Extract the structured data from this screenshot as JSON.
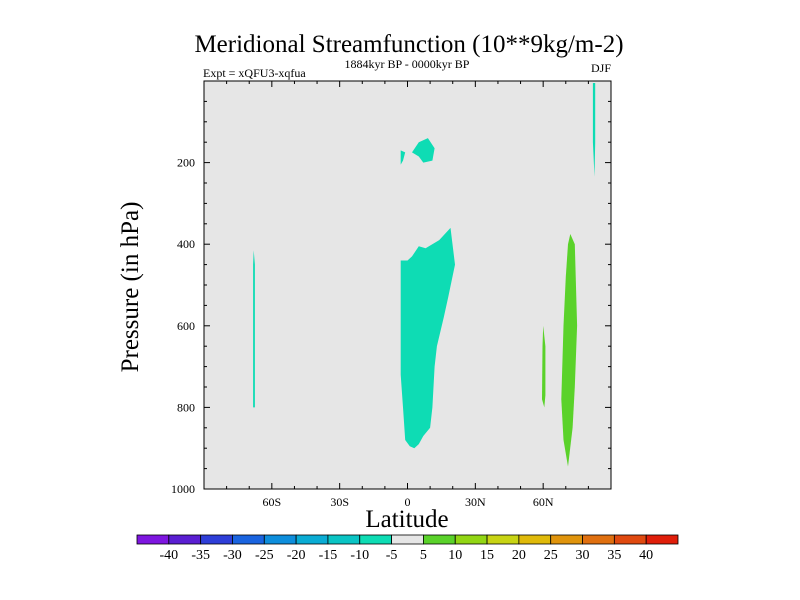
{
  "chart_data": {
    "type": "contour",
    "title": "Meridional Streamfunction (10**9kg/m-2)",
    "left_label": "Expt = xQFU3-xqfua",
    "center_label": "1884kyr BP - 0000kyr BP",
    "right_label": "DJF",
    "xlabel": "Latitude",
    "ylabel": "Pressure (in hPa)",
    "xlim": [
      -90,
      90
    ],
    "ylim": [
      1000,
      0
    ],
    "x_ticks": [
      {
        "value": -60,
        "label": "60S"
      },
      {
        "value": -30,
        "label": "30S"
      },
      {
        "value": 0,
        "label": "0"
      },
      {
        "value": 30,
        "label": "30N"
      },
      {
        "value": 60,
        "label": "60N"
      }
    ],
    "y_ticks": [
      {
        "value": 200,
        "label": "200"
      },
      {
        "value": 400,
        "label": "400"
      },
      {
        "value": 600,
        "label": "600"
      },
      {
        "value": 800,
        "label": "800"
      },
      {
        "value": 1000,
        "label": "1000"
      }
    ],
    "background_color": "#e6e6e6",
    "regions": [
      {
        "name": "neg-upper-small",
        "level": "-10 to -5",
        "color": "#0edcb4",
        "points": [
          [
            -3,
            170
          ],
          [
            -1,
            175
          ],
          [
            -2,
            195
          ],
          [
            -3,
            205
          ]
        ]
      },
      {
        "name": "neg-upper-main",
        "level": "-10 to -5",
        "color": "#0edcb4",
        "points": [
          [
            5,
            150
          ],
          [
            9,
            140
          ],
          [
            12,
            165
          ],
          [
            11,
            195
          ],
          [
            7,
            200
          ],
          [
            5,
            185
          ],
          [
            2,
            175
          ]
        ]
      },
      {
        "name": "neg-tropical-cell",
        "level": "-10 to -5",
        "color": "#0edcb4",
        "points": [
          [
            -3,
            440
          ],
          [
            0,
            440
          ],
          [
            2,
            430
          ],
          [
            5,
            405
          ],
          [
            8,
            410
          ],
          [
            14,
            390
          ],
          [
            19,
            360
          ],
          [
            21,
            450
          ],
          [
            18,
            530
          ],
          [
            16,
            580
          ],
          [
            13,
            650
          ],
          [
            12,
            700
          ],
          [
            11,
            800
          ],
          [
            10,
            850
          ],
          [
            7,
            870
          ],
          [
            5,
            890
          ],
          [
            3,
            900
          ],
          [
            1,
            895
          ],
          [
            -1,
            880
          ],
          [
            -2,
            800
          ],
          [
            -3,
            720
          ],
          [
            -3,
            600
          ],
          [
            -3,
            500
          ]
        ]
      },
      {
        "name": "neg-south-strip",
        "level": "-10 to -5",
        "color": "#0edcb4",
        "points": [
          [
            -68,
            415
          ],
          [
            -67.5,
            450
          ],
          [
            -67.5,
            800
          ],
          [
            -68.3,
            800
          ],
          [
            -68.3,
            450
          ]
        ]
      },
      {
        "name": "neg-north-strip",
        "level": "-10 to -5",
        "color": "#0edcb4",
        "points": [
          [
            82,
            5
          ],
          [
            83,
            5
          ],
          [
            83,
            150
          ],
          [
            82.7,
            235
          ],
          [
            82,
            150
          ]
        ]
      },
      {
        "name": "pos-north-main",
        "level": "5 to 10",
        "color": "#5ad22a",
        "points": [
          [
            72,
            375
          ],
          [
            74,
            400
          ],
          [
            75,
            600
          ],
          [
            74,
            750
          ],
          [
            73,
            850
          ],
          [
            71,
            945
          ],
          [
            69,
            880
          ],
          [
            68,
            780
          ],
          [
            69,
            600
          ],
          [
            70,
            480
          ],
          [
            71,
            400
          ]
        ]
      },
      {
        "name": "pos-north-small",
        "level": "5 to 10",
        "color": "#5ad22a",
        "points": [
          [
            60,
            600
          ],
          [
            61,
            650
          ],
          [
            61,
            770
          ],
          [
            60.5,
            800
          ],
          [
            59.5,
            780
          ],
          [
            59.7,
            650
          ]
        ]
      }
    ],
    "colorbar": {
      "labels": [
        "-40",
        "-35",
        "-30",
        "-25",
        "-20",
        "-15",
        "-10",
        "-5",
        "5",
        "10",
        "15",
        "20",
        "25",
        "30",
        "35",
        "40"
      ],
      "colors": [
        "#7e16e0",
        "#5a1ed2",
        "#2e3ed8",
        "#1a64e0",
        "#0e8edc",
        "#0aacd4",
        "#0ac4c4",
        "#0edcb4",
        "#e6e6e6",
        "#5ad22a",
        "#92d614",
        "#c8d414",
        "#e0ba0a",
        "#e0940c",
        "#e07010",
        "#e04a10",
        "#e01e0a"
      ]
    }
  }
}
